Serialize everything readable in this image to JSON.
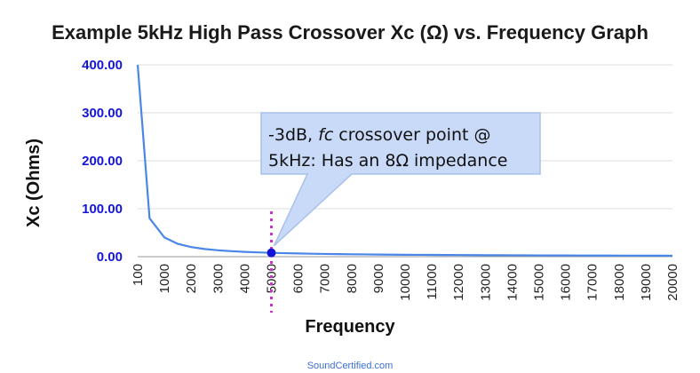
{
  "colors": {
    "line": "#4a86e8",
    "tick_y": "#1414d8",
    "grid": "#dcdcdc",
    "marker_line": "#cc33cc",
    "callout_fill": "#c9daf8",
    "callout_stroke": "#a9c1ea",
    "footer": "#3d6fd6"
  },
  "chart_data": {
    "type": "line",
    "title": "Example 5kHz High Pass Crossover Xc (Ω) vs. Frequency Graph",
    "xlabel": "Frequency",
    "ylabel": "Xc (Ohms)",
    "ylim": [
      0,
      400
    ],
    "y_ticks": [
      "0.00",
      "100.00",
      "200.00",
      "300.00",
      "400.00"
    ],
    "y_tick_values": [
      0,
      100,
      200,
      300,
      400
    ],
    "categories": [
      "100",
      "1000",
      "2000",
      "3000",
      "4000",
      "5000",
      "6000",
      "7000",
      "8000",
      "9000",
      "10000",
      "11000",
      "12000",
      "13000",
      "14000",
      "15000",
      "16000",
      "17000",
      "18000",
      "19000",
      "20000"
    ],
    "x": [
      100,
      500,
      1000,
      1500,
      2000,
      2500,
      3000,
      3500,
      4000,
      4500,
      5000,
      5500,
      6000,
      6500,
      7000,
      7500,
      8000,
      8500,
      9000,
      9500,
      10000,
      10500,
      11000,
      11500,
      12000,
      12500,
      13000,
      13500,
      14000,
      14500,
      15000,
      15500,
      16000,
      16500,
      17000,
      17500,
      18000,
      18500,
      19000,
      19500,
      20000
    ],
    "series": [
      {
        "name": "Xc",
        "values": [
          400,
          80,
          40,
          26.67,
          20,
          16,
          13.33,
          11.43,
          10,
          8.89,
          8,
          7.27,
          6.67,
          6.15,
          5.71,
          5.33,
          5,
          4.71,
          4.44,
          4.21,
          4,
          3.81,
          3.64,
          3.48,
          3.33,
          3.2,
          3.08,
          2.96,
          2.86,
          2.76,
          2.67,
          2.58,
          2.5,
          2.42,
          2.35,
          2.29,
          2.22,
          2.16,
          2.11,
          2.05,
          2
        ]
      }
    ],
    "highlight_point": {
      "x": 5000,
      "y": 8
    },
    "grid": true,
    "legend": "none",
    "annotation": {
      "line1_prefix": "-3dB, ",
      "line1_italic": "fc",
      "line1_suffix": " crossover point @",
      "line2": "5kHz: Has an 8Ω impedance"
    }
  },
  "footer": {
    "text": "SoundCertified.com"
  }
}
